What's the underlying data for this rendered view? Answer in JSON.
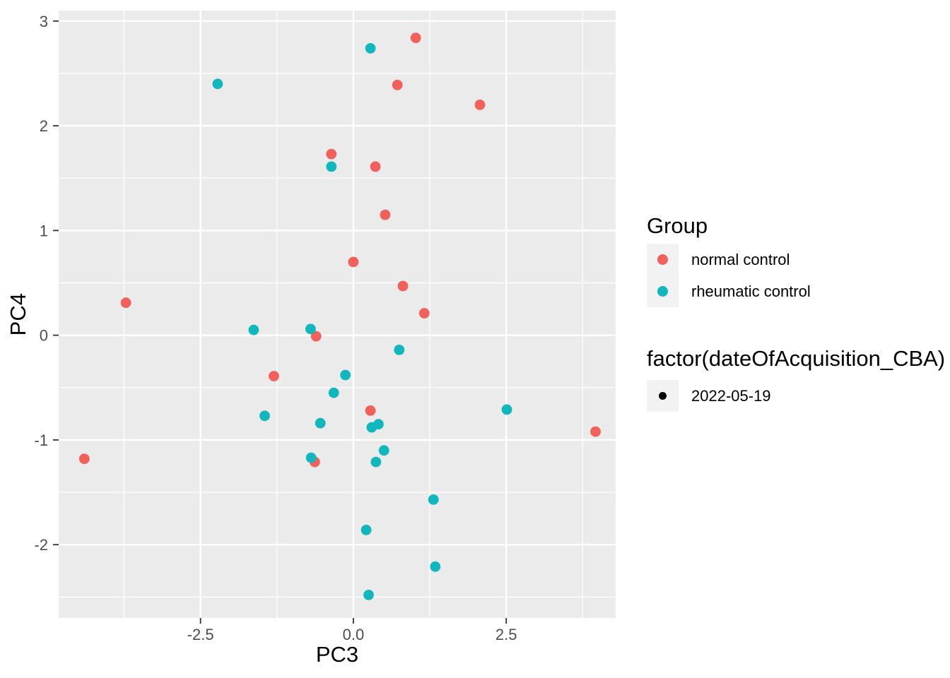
{
  "chart_data": {
    "type": "scatter",
    "title": "",
    "xlabel": "PC3",
    "ylabel": "PC4",
    "x_domain": [
      -4.82,
      4.29
    ],
    "y_domain": [
      -2.7,
      3.1
    ],
    "grid": true,
    "panel_background": "#EBEBEB",
    "gridline_color": "#FFFFFF",
    "axis_text_color": "#4D4D4D",
    "tick_color": "#333333",
    "x_ticks": [
      {
        "value": -2.5,
        "label": "-2.5"
      },
      {
        "value": 0.0,
        "label": "0.0"
      },
      {
        "value": 2.5,
        "label": "2.5"
      }
    ],
    "y_ticks": [
      {
        "value": -2,
        "label": "-2"
      },
      {
        "value": -1,
        "label": "-1"
      },
      {
        "value": 0,
        "label": "0"
      },
      {
        "value": 1,
        "label": "1"
      },
      {
        "value": 2,
        "label": "2"
      },
      {
        "value": 3,
        "label": "3"
      }
    ],
    "x_minor_gridlines": [
      -3.75,
      -1.25,
      1.25,
      3.75
    ],
    "y_minor_gridlines": [
      -2.5,
      -1.5,
      -0.5,
      0.5,
      1.5,
      2.5
    ],
    "point_radius": 7.4,
    "series": [
      {
        "name": "normal control",
        "color": "#F1605A",
        "points": [
          [
            1.02,
            2.84
          ],
          [
            0.72,
            2.39
          ],
          [
            2.07,
            2.2
          ],
          [
            -0.36,
            1.73
          ],
          [
            0.36,
            1.61
          ],
          [
            0.52,
            1.15
          ],
          [
            0.0,
            0.7
          ],
          [
            0.81,
            0.47
          ],
          [
            1.16,
            0.21
          ],
          [
            -3.72,
            0.31
          ],
          [
            -0.61,
            -0.01
          ],
          [
            -1.3,
            -0.39
          ],
          [
            0.28,
            -0.72
          ],
          [
            -0.63,
            -1.21
          ],
          [
            -4.4,
            -1.18
          ],
          [
            3.96,
            -0.92
          ]
        ]
      },
      {
        "name": "rheumatic control",
        "color": "#10B7BC",
        "points": [
          [
            0.28,
            2.74
          ],
          [
            -2.22,
            2.4
          ],
          [
            -0.36,
            1.61
          ],
          [
            -1.63,
            0.05
          ],
          [
            -0.7,
            0.06
          ],
          [
            0.75,
            -0.14
          ],
          [
            -0.13,
            -0.38
          ],
          [
            -0.32,
            -0.55
          ],
          [
            -1.45,
            -0.77
          ],
          [
            -0.54,
            -0.84
          ],
          [
            0.3,
            -0.88
          ],
          [
            0.41,
            -0.85
          ],
          [
            2.51,
            -0.71
          ],
          [
            0.5,
            -1.1
          ],
          [
            -0.69,
            -1.17
          ],
          [
            0.37,
            -1.21
          ],
          [
            1.31,
            -1.57
          ],
          [
            0.21,
            -1.86
          ],
          [
            1.34,
            -2.21
          ],
          [
            0.25,
            -2.48
          ]
        ]
      }
    ]
  },
  "legend": {
    "group": {
      "title": "Group",
      "items": [
        {
          "label": "normal control",
          "color": "#F1605A"
        },
        {
          "label": "rheumatic control",
          "color": "#10B7BC"
        }
      ]
    },
    "acquisition": {
      "title": "factor(dateOfAcquisition_CBA)",
      "items": [
        {
          "label": "2022-05-19",
          "color": "#000000"
        }
      ]
    }
  }
}
